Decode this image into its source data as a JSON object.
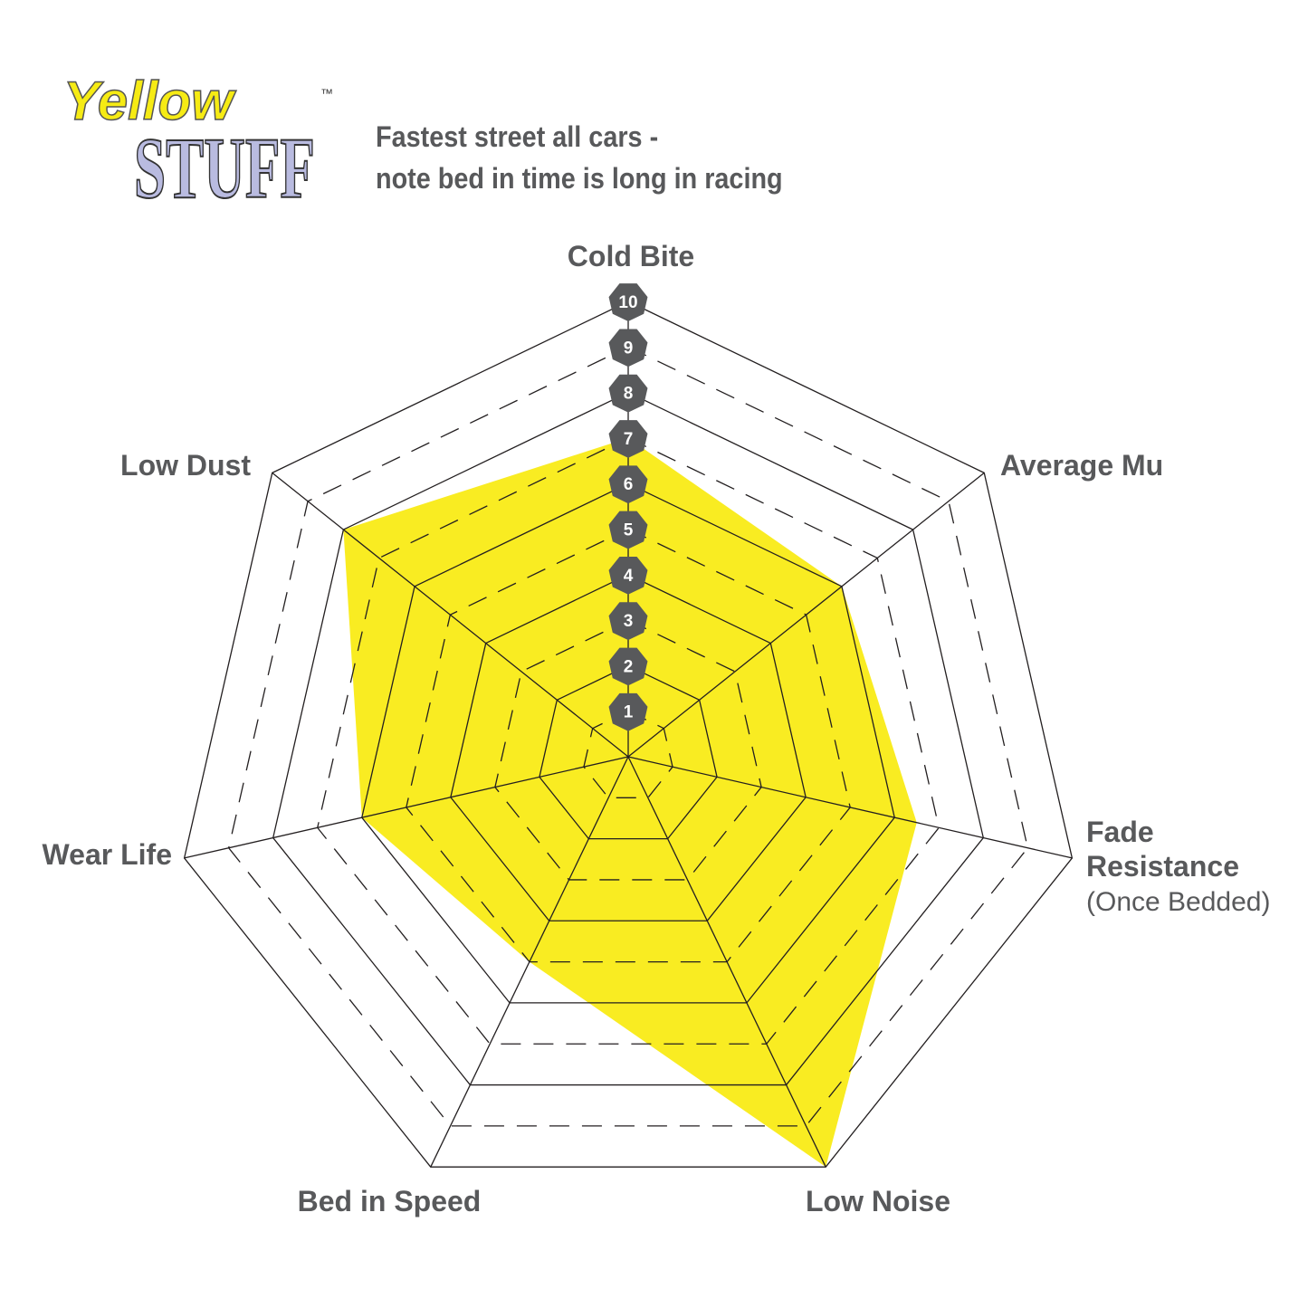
{
  "logo": {
    "line1": "Yellow",
    "line2": "STUFF",
    "tm": "™"
  },
  "title_lines": [
    "Fastest street all cars -",
    "note bed in time is long in racing"
  ],
  "chart_data": {
    "type": "radar",
    "axes": [
      {
        "label": "Cold Bite",
        "sub": ""
      },
      {
        "label": "Average Mu",
        "sub": ""
      },
      {
        "label": "Fade",
        "label2": "Resistance",
        "sub": "(Once Bedded)"
      },
      {
        "label": "Low Noise",
        "sub": ""
      },
      {
        "label": "Bed in Speed",
        "sub": ""
      },
      {
        "label": "Wear Life",
        "sub": ""
      },
      {
        "label": "Low Dust",
        "sub": ""
      }
    ],
    "values": [
      7,
      6,
      6.5,
      10,
      5,
      6,
      8
    ],
    "range": [
      0,
      10
    ],
    "tick_labels": [
      "1",
      "2",
      "3",
      "4",
      "5",
      "6",
      "7",
      "8",
      "9",
      "10"
    ],
    "grid": "even levels solid, odd levels dashed",
    "colors": {
      "fill": "#f9ec22",
      "grid": "#231f20",
      "tick_badge": "#58595b",
      "text": "#58595b"
    }
  }
}
